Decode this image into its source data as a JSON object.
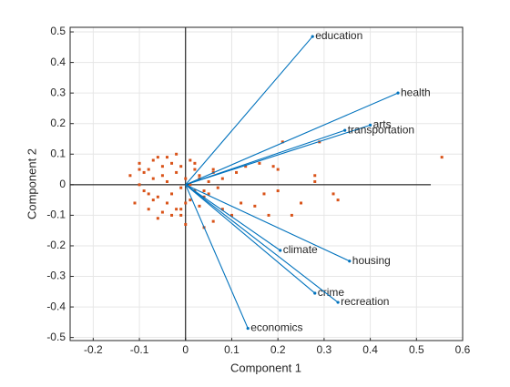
{
  "chart_data": {
    "type": "biplot",
    "xlabel": "Component 1",
    "ylabel": "Component 2",
    "xlim": [
      -0.25,
      0.6
    ],
    "ylim": [
      -0.51,
      0.515
    ],
    "xticks": [
      -0.2,
      -0.1,
      0,
      0.1,
      0.2,
      0.3,
      0.4,
      0.5,
      0.6
    ],
    "yticks": [
      -0.5,
      -0.4,
      -0.3,
      -0.2,
      -0.1,
      0,
      0.1,
      0.2,
      0.3,
      0.4,
      0.5
    ],
    "grid": true,
    "vector_color": "#0072bd",
    "vectors": [
      {
        "name": "education",
        "x": 0.275,
        "y": 0.485
      },
      {
        "name": "health",
        "x": 0.46,
        "y": 0.3
      },
      {
        "name": "arts",
        "x": 0.4,
        "y": 0.195
      },
      {
        "name": "transportation",
        "x": 0.345,
        "y": 0.178
      },
      {
        "name": "climate",
        "x": 0.205,
        "y": -0.215
      },
      {
        "name": "housing",
        "x": 0.355,
        "y": -0.25
      },
      {
        "name": "crime",
        "x": 0.28,
        "y": -0.355
      },
      {
        "name": "recreation",
        "x": 0.33,
        "y": -0.385
      },
      {
        "name": "economics",
        "x": 0.135,
        "y": -0.47
      }
    ],
    "points": {
      "color": "#d95319",
      "x": [
        -0.12,
        -0.1,
        -0.09,
        -0.08,
        -0.07,
        -0.06,
        -0.05,
        -0.04,
        -0.03,
        -0.02,
        -0.01,
        0.0,
        0.01,
        0.02,
        0.03,
        0.04,
        0.05,
        0.06,
        0.07,
        0.08,
        -0.11,
        -0.1,
        -0.08,
        -0.07,
        -0.06,
        -0.05,
        -0.04,
        -0.03,
        -0.02,
        -0.01,
        0.01,
        0.02,
        0.03,
        0.05,
        0.06,
        -0.09,
        -0.07,
        -0.05,
        -0.03,
        -0.02,
        0.0,
        0.02,
        0.04,
        -0.06,
        -0.04,
        -0.01,
        0.01,
        0.03,
        -0.08,
        -0.1,
        0.555,
        0.33,
        0.32,
        0.28,
        0.28,
        0.29,
        0.21,
        0.19,
        0.2,
        0.16,
        0.15,
        0.12,
        0.2,
        0.17,
        0.23,
        0.25,
        0.18,
        0.1,
        0.06,
        0.08,
        0.04,
        0.0,
        -0.01,
        0.11,
        0.13
      ],
      "y": [
        0.03,
        0.0,
        -0.02,
        0.05,
        0.02,
        -0.04,
        0.06,
        0.01,
        -0.03,
        0.04,
        -0.01,
        0.02,
        0.0,
        -0.02,
        0.03,
        -0.04,
        0.01,
        0.05,
        -0.01,
        0.02,
        -0.06,
        0.07,
        -0.08,
        0.08,
        0.09,
        -0.09,
        -0.06,
        0.07,
        -0.08,
        0.06,
        -0.05,
        0.05,
        -0.07,
        -0.03,
        0.04,
        0.04,
        -0.05,
        0.03,
        -0.1,
        0.1,
        -0.06,
        0.07,
        -0.02,
        -0.11,
        0.09,
        -0.08,
        0.08,
        0.02,
        -0.03,
        0.05,
        0.09,
        -0.05,
        -0.03,
        0.03,
        0.01,
        0.14,
        0.14,
        0.06,
        0.05,
        0.07,
        -0.07,
        -0.06,
        -0.02,
        -0.03,
        -0.1,
        -0.06,
        -0.1,
        -0.1,
        -0.12,
        -0.08,
        -0.14,
        -0.13,
        -0.1,
        0.04,
        0.06
      ]
    }
  }
}
